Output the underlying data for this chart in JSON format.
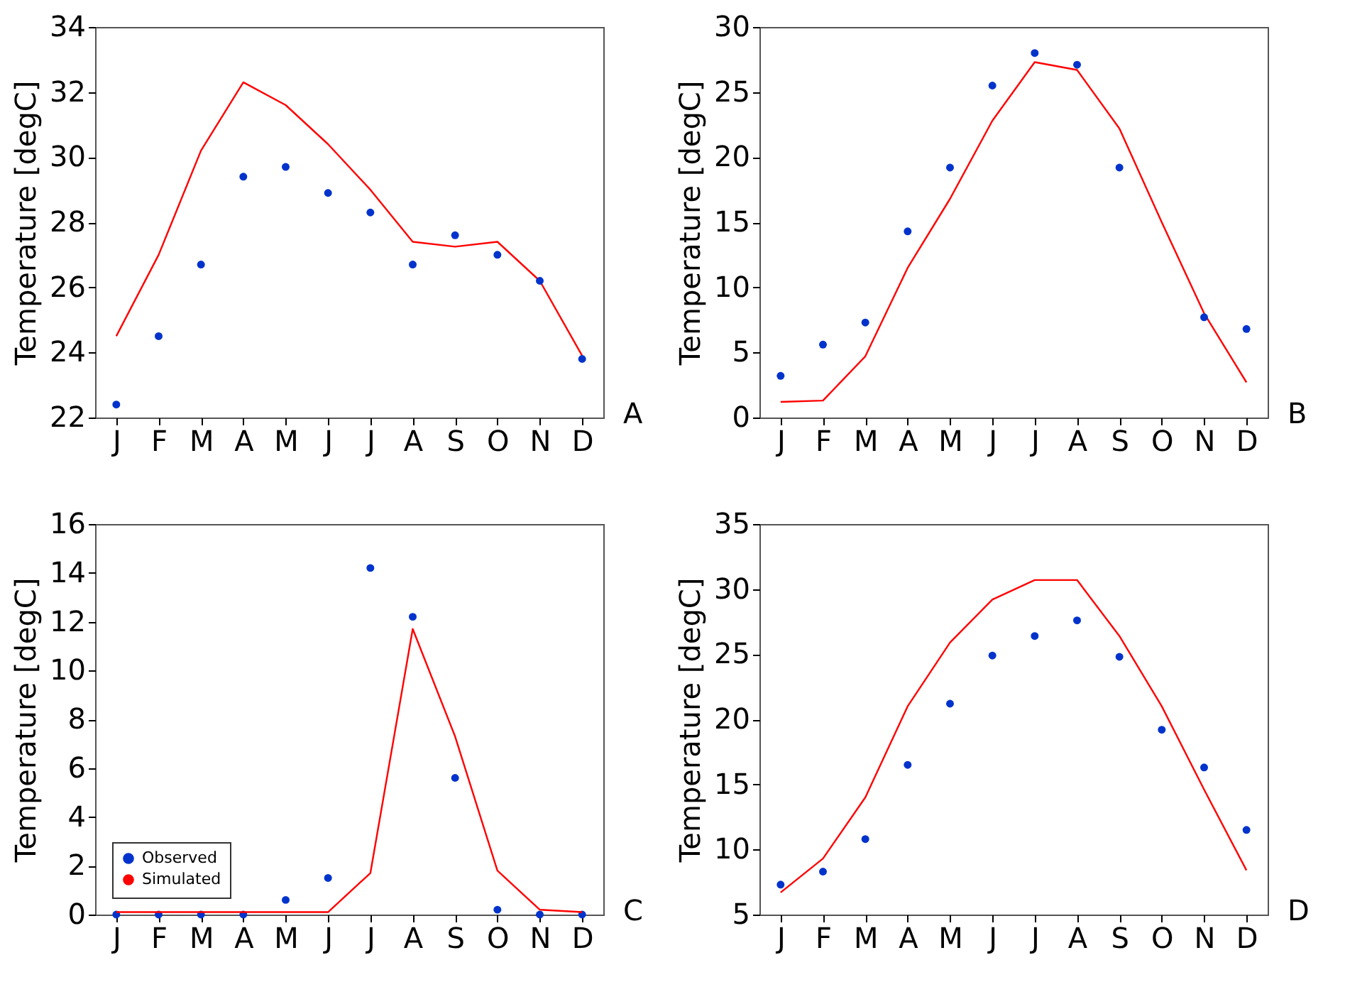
{
  "chart_data": [
    {
      "type": "line",
      "categories": [
        "J",
        "F",
        "M",
        "A",
        "M",
        "J",
        "J",
        "A",
        "S",
        "O",
        "N",
        "D"
      ],
      "ylabel": "Temperature [degC]",
      "ylim": [
        22,
        34
      ],
      "yticks": [
        22,
        24,
        26,
        28,
        30,
        32,
        34
      ],
      "annotations": [
        "A"
      ],
      "series": [
        {
          "type": "line",
          "color": "#ff0000",
          "values": [
            24.5,
            27.0,
            30.2,
            32.3,
            31.6,
            30.4,
            29.0,
            27.4,
            27.25,
            27.4,
            26.2,
            23.9
          ]
        },
        {
          "type": "scatter",
          "color": "#0033cc",
          "values": [
            22.4,
            24.5,
            26.7,
            29.4,
            29.7,
            28.9,
            28.3,
            26.7,
            27.6,
            27.0,
            26.2,
            23.8
          ]
        }
      ]
    },
    {
      "type": "line",
      "categories": [
        "J",
        "F",
        "M",
        "A",
        "M",
        "J",
        "J",
        "A",
        "S",
        "O",
        "N",
        "D"
      ],
      "ylabel": "Temperature [degC]",
      "ylim": [
        0,
        30
      ],
      "yticks": [
        0,
        5,
        10,
        15,
        20,
        25,
        30
      ],
      "annotations": [
        "B"
      ],
      "series": [
        {
          "type": "line",
          "color": "#ff0000",
          "values": [
            1.2,
            1.3,
            4.7,
            11.5,
            16.8,
            22.8,
            27.3,
            26.7,
            22.2,
            15.0,
            8.0,
            2.7
          ]
        },
        {
          "type": "scatter",
          "color": "#0033cc",
          "values": [
            3.2,
            5.6,
            7.3,
            14.3,
            19.2,
            25.5,
            28.0,
            27.1,
            19.2,
            null,
            7.7,
            6.8
          ]
        }
      ]
    },
    {
      "type": "line",
      "categories": [
        "J",
        "F",
        "M",
        "A",
        "M",
        "J",
        "J",
        "A",
        "S",
        "O",
        "N",
        "D"
      ],
      "ylabel": "Temperature [degC]",
      "ylim": [
        0,
        16
      ],
      "yticks": [
        0,
        2,
        4,
        6,
        8,
        10,
        12,
        14,
        16
      ],
      "annotations": [
        "C"
      ],
      "legend": "bottom left",
      "series": [
        {
          "name": "Observed",
          "type": "scatter",
          "color": "#0033cc",
          "values": [
            0,
            0,
            0,
            0,
            0.6,
            1.5,
            14.2,
            12.2,
            5.6,
            0.2,
            0,
            0
          ]
        },
        {
          "name": "Simulated",
          "type": "line",
          "color": "#ff0000",
          "values": [
            0.1,
            0.1,
            0.1,
            0.1,
            0.1,
            0.1,
            1.7,
            11.7,
            7.3,
            1.8,
            0.2,
            0.1
          ]
        }
      ]
    },
    {
      "type": "line",
      "categories": [
        "J",
        "F",
        "M",
        "A",
        "M",
        "J",
        "J",
        "A",
        "S",
        "O",
        "N",
        "D"
      ],
      "ylabel": "Temperature [degC]",
      "ylim": [
        5,
        35
      ],
      "yticks": [
        5,
        10,
        15,
        20,
        25,
        30,
        35
      ],
      "annotations": [
        "D"
      ],
      "series": [
        {
          "type": "line",
          "color": "#ff0000",
          "values": [
            6.7,
            9.3,
            14.0,
            21.0,
            25.9,
            29.2,
            30.7,
            30.7,
            26.4,
            21.0,
            14.6,
            8.4
          ]
        },
        {
          "type": "scatter",
          "color": "#0033cc",
          "values": [
            7.3,
            8.3,
            10.8,
            16.5,
            21.2,
            24.9,
            26.4,
            27.6,
            24.8,
            19.2,
            16.3,
            11.5
          ]
        }
      ]
    }
  ]
}
